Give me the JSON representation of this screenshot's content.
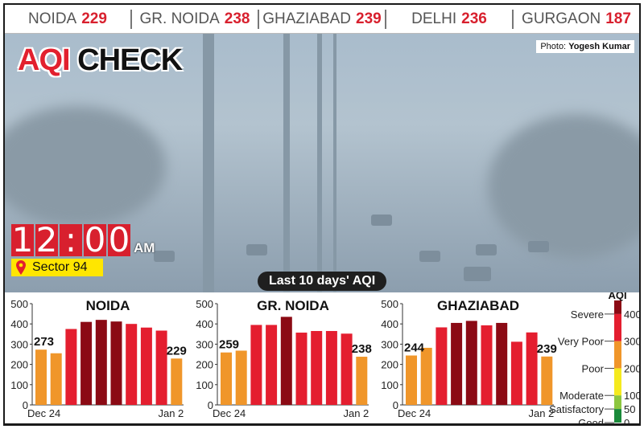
{
  "topbar": [
    {
      "city": "NOIDA",
      "aqi": "229"
    },
    {
      "city": "GR. NOIDA",
      "aqi": "238"
    },
    {
      "city": "GHAZIABAD",
      "aqi": "239"
    },
    {
      "city": "DELHI",
      "aqi": "236"
    },
    {
      "city": "GURGAON",
      "aqi": "187"
    }
  ],
  "title": {
    "part1": "AQI",
    "part2": "CHECK"
  },
  "credit": {
    "label": "Photo:",
    "name": "Yogesh Kumar"
  },
  "clock": {
    "d1": "1",
    "d2": "2",
    "colon": ":",
    "d3": "0",
    "d4": "0",
    "ampm": "AM"
  },
  "location": "Sector 94",
  "last_label": "Last 10 days' AQI",
  "colors": {
    "poor": "#f0962a",
    "very_poor": "#e41e2f",
    "severe": "#8b0a14",
    "moderate": "#f5ea1e",
    "satisfactory": "#8cc63f",
    "good": "#1a8a3a"
  },
  "chart_data": [
    {
      "type": "bar",
      "title": "NOIDA",
      "ylim": [
        0,
        500
      ],
      "yticks": [
        "0",
        "100",
        "200",
        "300",
        "400",
        "500"
      ],
      "x_start": "Dec 24",
      "x_end": "Jan 2",
      "values": [
        273,
        255,
        375,
        410,
        420,
        412,
        400,
        382,
        367,
        229
      ],
      "labels": {
        "first": "273",
        "last": "229"
      }
    },
    {
      "type": "bar",
      "title": "GR. NOIDA",
      "ylim": [
        0,
        500
      ],
      "yticks": [
        "0",
        "100",
        "200",
        "300",
        "400",
        "500"
      ],
      "x_start": "Dec 24",
      "x_end": "Jan 2",
      "values": [
        259,
        268,
        395,
        395,
        435,
        357,
        365,
        365,
        352,
        238
      ],
      "labels": {
        "first": "259",
        "last": "238"
      }
    },
    {
      "type": "bar",
      "title": "GHAZIABAD",
      "ylim": [
        0,
        500
      ],
      "yticks": [
        "0",
        "100",
        "200",
        "300",
        "400",
        "500"
      ],
      "x_start": "Dec 24",
      "x_end": "Jan 2",
      "values": [
        244,
        282,
        383,
        405,
        415,
        393,
        405,
        312,
        358,
        239
      ],
      "labels": {
        "first": "244",
        "last": "239"
      }
    }
  ],
  "legend": {
    "title": "AQI",
    "categories": [
      {
        "label": "Severe",
        "value": "400"
      },
      {
        "label": "Very Poor",
        "value": "300"
      },
      {
        "label": "Poor",
        "value": "200"
      },
      {
        "label": "Moderate",
        "value": "100"
      },
      {
        "label": "Satisfactory",
        "value": "50"
      },
      {
        "label": "Good",
        "value": "0"
      }
    ]
  }
}
